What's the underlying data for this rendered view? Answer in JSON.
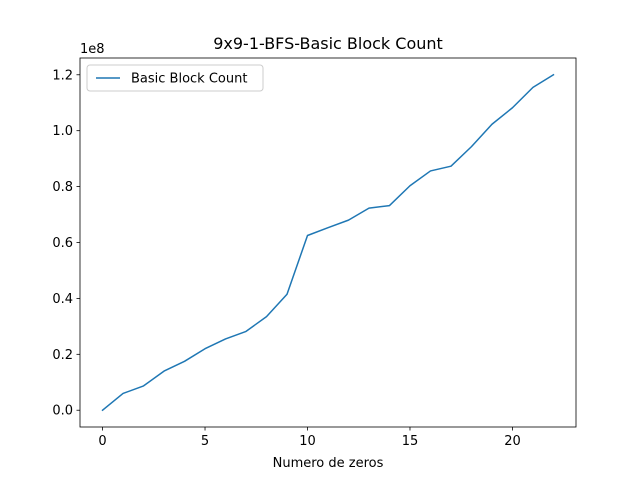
{
  "chart_data": {
    "type": "line",
    "title": "9x9-1-BFS-Basic Block Count",
    "xlabel": "Numero de zeros",
    "ylabel": "",
    "y_offset_label": "1e8",
    "y_scale": 100000000,
    "xlim": [
      -1.1,
      23.1
    ],
    "ylim": [
      -6000000,
      126000000
    ],
    "x_ticks": [
      0,
      5,
      10,
      15,
      20
    ],
    "y_ticks": [
      0,
      20000000,
      40000000,
      60000000,
      80000000,
      100000000,
      120000000
    ],
    "y_tick_labels": [
      "0.0",
      "0.2",
      "0.4",
      "0.6",
      "0.8",
      "1.0",
      "1.2"
    ],
    "grid": false,
    "legend_position": "upper-left",
    "series": [
      {
        "name": "Basic Block Count",
        "color": "#1f77b4",
        "x": [
          0,
          1,
          2,
          3,
          4,
          5,
          6,
          7,
          8,
          9,
          10,
          11,
          12,
          13,
          14,
          15,
          16,
          17,
          18,
          19,
          20,
          21,
          22
        ],
        "y": [
          0,
          6000000,
          8700000,
          14000000,
          17500000,
          22000000,
          25500000,
          28200000,
          33500000,
          41500000,
          62500000,
          65300000,
          68000000,
          72300000,
          73200000,
          80300000,
          85600000,
          87300000,
          94300000,
          102300000,
          108200000,
          115500000,
          120000000
        ]
      }
    ]
  }
}
